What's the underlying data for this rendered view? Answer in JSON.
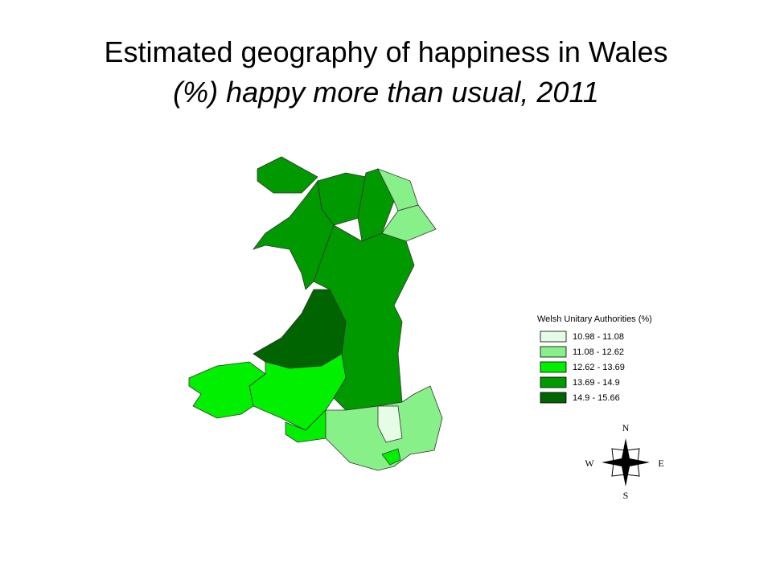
{
  "title": "Estimated geography of happiness in Wales",
  "subtitle": "(%) happy more than usual, 2011",
  "legend": {
    "title": "Welsh Unitary Authorities  (%)",
    "items": [
      {
        "label": "10.98 - 11.08",
        "color": "#e6fce6"
      },
      {
        "label": "11.08 - 12.62",
        "color": "#88f088"
      },
      {
        "label": "12.62 - 13.69",
        "color": "#00f000"
      },
      {
        "label": "13.69 - 14.9",
        "color": "#009900"
      },
      {
        "label": "14.9 - 15.66",
        "color": "#006400"
      }
    ]
  },
  "compass": {
    "north": "N",
    "south": "S",
    "east": "E",
    "west": "W"
  }
}
